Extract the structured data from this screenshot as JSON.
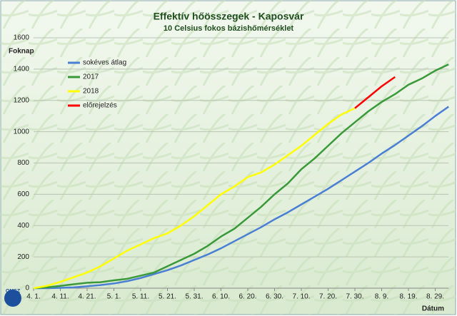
{
  "chart_data": {
    "type": "line",
    "title": "Effektív hőösszegek - Kaposvár",
    "subtitle": "10 Celsius fokos bázishőmérséklet",
    "y_label": "Foknap",
    "x_label": "Dátum",
    "logo": "OMSZ",
    "categories": [
      "4. 1.",
      null,
      "4. 11.",
      null,
      "4. 21.",
      null,
      "5. 1.",
      null,
      "5. 11.",
      null,
      "5. 21.",
      null,
      "5. 31.",
      null,
      "6. 10.",
      null,
      "6. 20.",
      null,
      "6. 30.",
      null,
      "7. 10.",
      null,
      "7. 20.",
      null,
      "7. 30.",
      null,
      "8. 9.",
      null,
      "8. 19.",
      null,
      "8. 29.",
      null
    ],
    "series": [
      {
        "name": "sokéves átlag",
        "color": "#4a7fd4",
        "values": [
          0,
          0,
          2,
          5,
          12,
          20,
          30,
          45,
          65,
          90,
          115,
          145,
          180,
          215,
          255,
          300,
          345,
          390,
          440,
          485,
          535,
          585,
          635,
          690,
          745,
          800,
          860,
          915,
          975,
          1035,
          1100,
          1160
        ]
      },
      {
        "name": "2017",
        "color": "#3a9a3a",
        "values": [
          0,
          5,
          15,
          25,
          35,
          38,
          50,
          60,
          80,
          100,
          140,
          180,
          220,
          270,
          330,
          380,
          450,
          520,
          600,
          670,
          760,
          830,
          910,
          990,
          1060,
          1130,
          1190,
          1240,
          1300,
          1340,
          1390,
          1430
        ]
      },
      {
        "name": "2018",
        "color": "#ffff00",
        "values": [
          0,
          15,
          40,
          70,
          100,
          140,
          190,
          240,
          280,
          320,
          350,
          400,
          460,
          530,
          600,
          650,
          710,
          740,
          790,
          850,
          910,
          980,
          1050,
          1110,
          1150,
          null,
          null,
          null,
          null,
          null,
          null,
          null
        ]
      },
      {
        "name": "előrejelzés",
        "color": "#ff0000",
        "values": [
          null,
          null,
          null,
          null,
          null,
          null,
          null,
          null,
          null,
          null,
          null,
          null,
          null,
          null,
          null,
          null,
          null,
          null,
          null,
          null,
          null,
          null,
          null,
          null,
          1150,
          1220,
          1290,
          1350,
          null,
          null,
          null,
          null
        ]
      }
    ],
    "ylim": [
      0,
      1600
    ],
    "yticks": [
      0,
      200,
      400,
      600,
      800,
      1000,
      1200,
      1400,
      1600
    ],
    "grid": true,
    "legend": "top-left"
  }
}
